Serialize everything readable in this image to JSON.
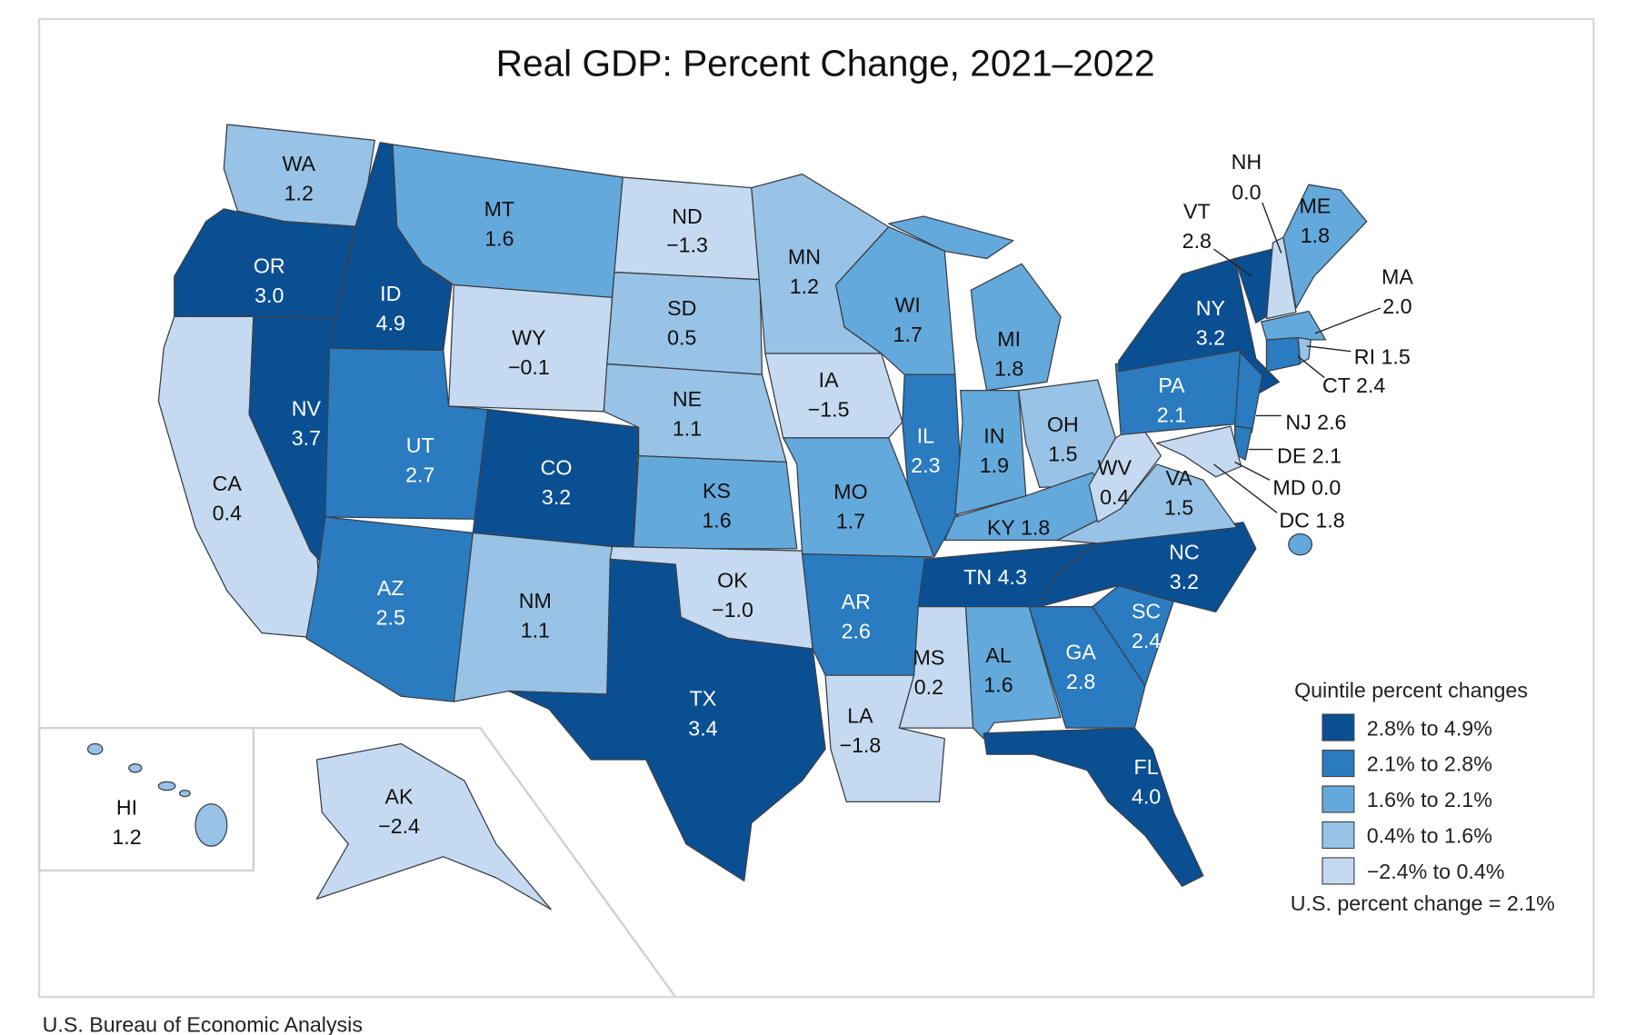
{
  "chart_data": {
    "type": "choropleth",
    "title": "Real GDP: Percent Change, 2021–2022",
    "source": "U.S. Bureau of Economic Analysis",
    "legend": {
      "title": "Quintile percent changes",
      "placement": "bottom-right",
      "bins": [
        {
          "label": "2.8% to 4.9%",
          "color": "#0b4f93"
        },
        {
          "label": "2.1% to 2.8%",
          "color": "#2a7bbf"
        },
        {
          "label": "1.6% to 2.1%",
          "color": "#64a9dc"
        },
        {
          "label": "0.4% to 1.6%",
          "color": "#98c3e7"
        },
        {
          "label": "−2.4% to 0.4%",
          "color": "#c5daf0"
        }
      ],
      "us_note": "U.S. percent change = 2.1%"
    },
    "states": [
      {
        "abbr": "WA",
        "value": "1.2",
        "bin": 3
      },
      {
        "abbr": "OR",
        "value": "3.0",
        "bin": 0
      },
      {
        "abbr": "CA",
        "value": "0.4",
        "bin": 4
      },
      {
        "abbr": "NV",
        "value": "3.7",
        "bin": 0
      },
      {
        "abbr": "ID",
        "value": "4.9",
        "bin": 0
      },
      {
        "abbr": "MT",
        "value": "1.6",
        "bin": 2
      },
      {
        "abbr": "WY",
        "value": "−0.1",
        "bin": 4
      },
      {
        "abbr": "UT",
        "value": "2.7",
        "bin": 1
      },
      {
        "abbr": "CO",
        "value": "3.2",
        "bin": 0
      },
      {
        "abbr": "AZ",
        "value": "2.5",
        "bin": 1
      },
      {
        "abbr": "NM",
        "value": "1.1",
        "bin": 3
      },
      {
        "abbr": "ND",
        "value": "−1.3",
        "bin": 4
      },
      {
        "abbr": "SD",
        "value": "0.5",
        "bin": 3
      },
      {
        "abbr": "NE",
        "value": "1.1",
        "bin": 3
      },
      {
        "abbr": "KS",
        "value": "1.6",
        "bin": 2
      },
      {
        "abbr": "OK",
        "value": "−1.0",
        "bin": 4
      },
      {
        "abbr": "TX",
        "value": "3.4",
        "bin": 0
      },
      {
        "abbr": "MN",
        "value": "1.2",
        "bin": 3
      },
      {
        "abbr": "IA",
        "value": "−1.5",
        "bin": 4
      },
      {
        "abbr": "MO",
        "value": "1.7",
        "bin": 2
      },
      {
        "abbr": "AR",
        "value": "2.6",
        "bin": 1
      },
      {
        "abbr": "LA",
        "value": "−1.8",
        "bin": 4
      },
      {
        "abbr": "WI",
        "value": "1.7",
        "bin": 2
      },
      {
        "abbr": "IL",
        "value": "2.3",
        "bin": 1
      },
      {
        "abbr": "MI",
        "value": "1.8",
        "bin": 2
      },
      {
        "abbr": "IN",
        "value": "1.9",
        "bin": 2
      },
      {
        "abbr": "OH",
        "value": "1.5",
        "bin": 3
      },
      {
        "abbr": "KY",
        "value": "1.8",
        "bin": 2
      },
      {
        "abbr": "TN",
        "value": "4.3",
        "bin": 0
      },
      {
        "abbr": "MS",
        "value": "0.2",
        "bin": 4
      },
      {
        "abbr": "AL",
        "value": "1.6",
        "bin": 2
      },
      {
        "abbr": "GA",
        "value": "2.8",
        "bin": 1
      },
      {
        "abbr": "FL",
        "value": "4.0",
        "bin": 0
      },
      {
        "abbr": "SC",
        "value": "2.4",
        "bin": 1
      },
      {
        "abbr": "NC",
        "value": "3.2",
        "bin": 0
      },
      {
        "abbr": "VA",
        "value": "1.5",
        "bin": 3
      },
      {
        "abbr": "WV",
        "value": "0.4",
        "bin": 4
      },
      {
        "abbr": "PA",
        "value": "2.1",
        "bin": 1
      },
      {
        "abbr": "NY",
        "value": "3.2",
        "bin": 0
      },
      {
        "abbr": "NJ",
        "value": "2.6",
        "bin": 1
      },
      {
        "abbr": "DE",
        "value": "2.1",
        "bin": 1
      },
      {
        "abbr": "MD",
        "value": "0.0",
        "bin": 4
      },
      {
        "abbr": "DC",
        "value": "1.8",
        "bin": 2
      },
      {
        "abbr": "VT",
        "value": "2.8",
        "bin": 0
      },
      {
        "abbr": "NH",
        "value": "0.0",
        "bin": 4
      },
      {
        "abbr": "ME",
        "value": "1.8",
        "bin": 2
      },
      {
        "abbr": "MA",
        "value": "2.0",
        "bin": 2
      },
      {
        "abbr": "CT",
        "value": "2.4",
        "bin": 1
      },
      {
        "abbr": "RI",
        "value": "1.5",
        "bin": 3
      },
      {
        "abbr": "AK",
        "value": "−2.4",
        "bin": 4
      },
      {
        "abbr": "HI",
        "value": "1.2",
        "bin": 3
      }
    ]
  }
}
